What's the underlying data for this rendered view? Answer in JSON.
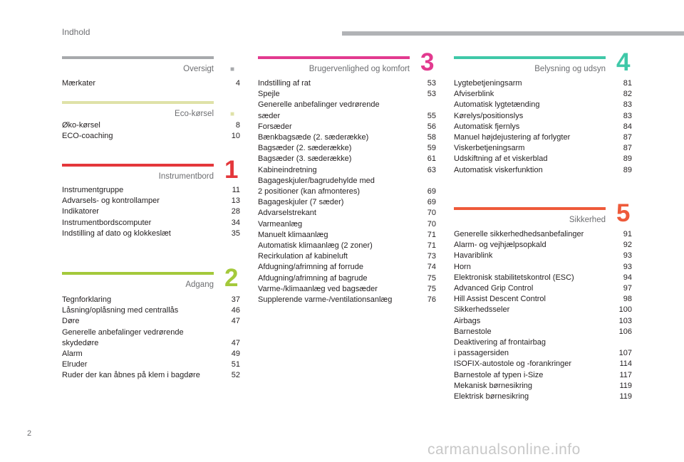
{
  "header": {
    "title": "Indhold"
  },
  "page_number": "2",
  "watermark": "carmanualsonline.info",
  "sections": {
    "oversigt": {
      "title": "Oversigt",
      "number": "",
      "color": "#a7a9ac",
      "items": [
        {
          "label": "Mærkater",
          "page": "4"
        }
      ]
    },
    "eco": {
      "title": "Eco-kørsel",
      "number": "",
      "color": "#dfe2a8",
      "items": [
        {
          "label": "Øko-kørsel",
          "page": "8"
        },
        {
          "label": "ECO-coaching",
          "page": "10"
        }
      ]
    },
    "instrumentbord": {
      "title": "Instrumentbord",
      "number": "1",
      "color": "#e4373b",
      "items": [
        {
          "label": "Instrumentgruppe",
          "page": "11"
        },
        {
          "label": "Advarsels- og kontrollamper",
          "page": "13"
        },
        {
          "label": "Indikatorer",
          "page": "28"
        },
        {
          "label": "Instrumentbordscomputer",
          "page": "34"
        },
        {
          "label": "Indstilling af dato og klokkeslæt",
          "page": "35"
        }
      ]
    },
    "adgang": {
      "title": "Adgang",
      "number": "2",
      "color": "#a4c93b",
      "items": [
        {
          "label": "Tegnforklaring",
          "page": "37"
        },
        {
          "label": "Låsning/oplåsning med centrallås",
          "page": "46"
        },
        {
          "label": "Døre",
          "page": "47"
        },
        {
          "label": "Generelle anbefalinger vedrørende\nskydedøre",
          "page": "47"
        },
        {
          "label": "Alarm",
          "page": "49"
        },
        {
          "label": "Elruder",
          "page": "51"
        },
        {
          "label": "Ruder der kan åbnes på klem i bagdøre",
          "page": "52"
        }
      ]
    },
    "komfort": {
      "title": "Brugervenlighed og komfort",
      "number": "3",
      "color": "#e23a8f",
      "items": [
        {
          "label": "Indstilling af rat",
          "page": "53"
        },
        {
          "label": "Spejle",
          "page": "53"
        },
        {
          "label": "Generelle anbefalinger vedrørende\nsæder",
          "page": "55"
        },
        {
          "label": "Forsæder",
          "page": "56"
        },
        {
          "label": "Bænkbagsæde (2. sæderække)",
          "page": "58"
        },
        {
          "label": "Bagsæder (2. sæderække)",
          "page": "59"
        },
        {
          "label": "Bagsæder (3. sæderække)",
          "page": "61"
        },
        {
          "label": "Kabineindretning",
          "page": "63"
        },
        {
          "label": "Bagageskjuler/bagrudehylde med\n2 positioner (kan afmonteres)",
          "page": "69"
        },
        {
          "label": "Bagageskjuler (7 sæder)",
          "page": "69"
        },
        {
          "label": "Advarselstrekant",
          "page": "70"
        },
        {
          "label": "Varmeanlæg",
          "page": "70"
        },
        {
          "label": "Manuelt klimaanlæg",
          "page": "71"
        },
        {
          "label": "Automatisk klimaanlæg (2 zoner)",
          "page": "71"
        },
        {
          "label": "Recirkulation af kabineluft",
          "page": "73"
        },
        {
          "label": "Afdugning/afrimning af forrude",
          "page": "74"
        },
        {
          "label": "Afdugning/afrimning af bagrude",
          "page": "75"
        },
        {
          "label": "Varme-/klimaanlæg ved bagsæder",
          "page": "75"
        },
        {
          "label": "Supplerende varme-/ventilationsanlæg",
          "page": "76"
        }
      ]
    },
    "belysning": {
      "title": "Belysning og udsyn",
      "number": "4",
      "color": "#3fc8a8",
      "items": [
        {
          "label": "Lygtebetjeningsarm",
          "page": "81"
        },
        {
          "label": "Afviserblink",
          "page": "82"
        },
        {
          "label": "Automatisk lygtetænding",
          "page": "83"
        },
        {
          "label": "Kørelys/positionslys",
          "page": "83"
        },
        {
          "label": "Automatisk fjernlys",
          "page": "84"
        },
        {
          "label": "Manuel højdejustering af forlygter",
          "page": "87"
        },
        {
          "label": "Viskerbetjeningsarm",
          "page": "87"
        },
        {
          "label": "Udskiftning af et viskerblad",
          "page": "89"
        },
        {
          "label": "Automatisk viskerfunktion",
          "page": "89"
        }
      ]
    },
    "sikkerhed": {
      "title": "Sikkerhed",
      "number": "5",
      "color": "#ee5a3a",
      "items": [
        {
          "label": "Generelle sikkerhedhedsanbefalinger",
          "page": "91"
        },
        {
          "label": "Alarm- og vejhjælpsopkald",
          "page": "92"
        },
        {
          "label": "Havariblink",
          "page": "93"
        },
        {
          "label": "Horn",
          "page": "93"
        },
        {
          "label": "Elektronisk stabilitetskontrol (ESC)",
          "page": "94"
        },
        {
          "label": "Advanced Grip Control",
          "page": "97"
        },
        {
          "label": "Hill Assist Descent Control",
          "page": "98"
        },
        {
          "label": "Sikkerhedsseler",
          "page": "100"
        },
        {
          "label": "Airbags",
          "page": "103"
        },
        {
          "label": "Barnestole",
          "page": "106"
        },
        {
          "label": "Deaktivering af frontairbag\ni passagersiden",
          "page": "107"
        },
        {
          "label": "ISOFIX-autostole og -forankringer",
          "page": "114"
        },
        {
          "label": "Barnestole af typen i-Size",
          "page": "117"
        },
        {
          "label": "Mekanisk børnesikring",
          "page": "119"
        },
        {
          "label": "Elektrisk børnesikring",
          "page": "119"
        }
      ]
    }
  }
}
